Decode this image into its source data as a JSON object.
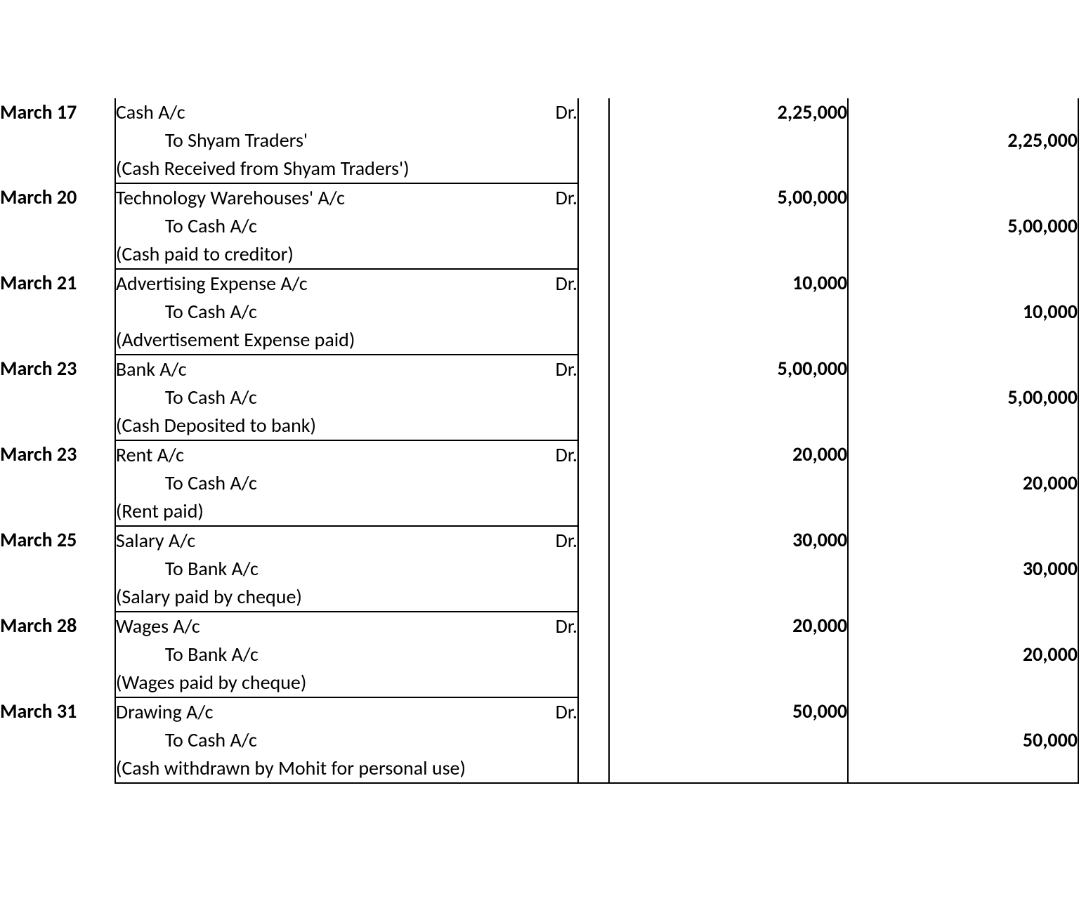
{
  "journal": {
    "font_family": "Calibri, Arial, sans-serif",
    "font_size_pt": 21,
    "text_color": "#000000",
    "background_color": "#ffffff",
    "border_color": "#000000",
    "dr_label": "Dr.",
    "entries": [
      {
        "date": "March 17",
        "debit_account": "Cash A/c",
        "credit_account": "To Shyam Traders'",
        "narration": "(Cash Received from Shyam Traders')",
        "debit_amount": "2,25,000",
        "credit_amount": "2,25,000"
      },
      {
        "date": "March 20",
        "debit_account": "Technology Warehouses' A/c",
        "credit_account": "To Cash A/c",
        "narration": "(Cash paid to creditor)",
        "debit_amount": "5,00,000",
        "credit_amount": "5,00,000"
      },
      {
        "date": "March 21",
        "debit_account": "Advertising Expense A/c",
        "credit_account": "To Cash A/c",
        "narration": "(Advertisement Expense paid)",
        "debit_amount": "10,000",
        "credit_amount": "10,000"
      },
      {
        "date": "March 23",
        "debit_account": "Bank A/c",
        "credit_account": "To Cash A/c",
        "narration": "(Cash Deposited to bank)",
        "debit_amount": "5,00,000",
        "credit_amount": "5,00,000"
      },
      {
        "date": "March 23",
        "debit_account": "Rent A/c",
        "credit_account": "To Cash A/c",
        "narration": "(Rent paid)",
        "debit_amount": "20,000",
        "credit_amount": "20,000"
      },
      {
        "date": "March 25",
        "debit_account": "Salary A/c",
        "credit_account": "To Bank A/c",
        "narration": "(Salary paid by cheque)",
        "debit_amount": "30,000",
        "credit_amount": "30,000"
      },
      {
        "date": "March 28",
        "debit_account": "Wages A/c",
        "credit_account": "To Bank A/c",
        "narration": "(Wages paid by cheque)",
        "debit_amount": "20,000",
        "credit_amount": "20,000"
      },
      {
        "date": "March 31",
        "debit_account": "Drawing A/c",
        "credit_account": "To Cash A/c",
        "narration": "(Cash withdrawn by Mohit for personal use)",
        "debit_amount": "50,000",
        "credit_amount": "50,000"
      }
    ]
  }
}
